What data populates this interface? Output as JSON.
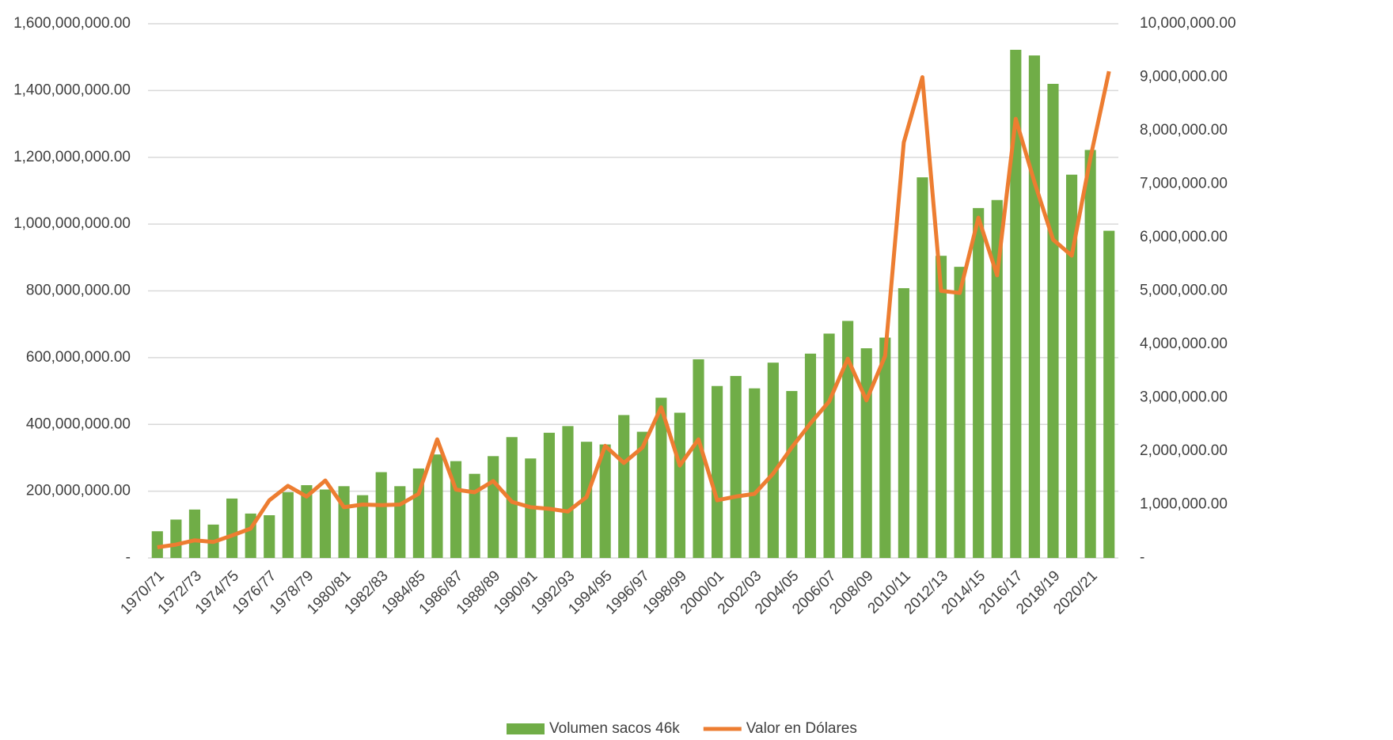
{
  "chart_data": {
    "type": "bar-line",
    "categories": [
      "1970/71",
      null,
      "1972/73",
      null,
      "1974/75",
      null,
      "1976/77",
      null,
      "1978/79",
      null,
      "1980/81",
      null,
      "1982/83",
      null,
      "1984/85",
      null,
      "1986/87",
      null,
      "1988/89",
      null,
      "1990/91",
      null,
      "1992/93",
      null,
      "1994/95",
      null,
      "1996/97",
      null,
      "1998/99",
      null,
      "2000/01",
      null,
      "2002/03",
      null,
      "2004/05",
      null,
      "2006/07",
      null,
      "2008/09",
      null,
      "2010/11",
      null,
      "2012/13",
      null,
      "2014/15",
      null,
      "2016/17",
      null,
      "2018/19",
      null,
      "2020/21",
      null
    ],
    "series": [
      {
        "name": "Volumen sacos 46k",
        "type": "bar",
        "color": "#70ad47",
        "axis": "y",
        "values": [
          80000000,
          115000000,
          145000000,
          100000000,
          178000000,
          133000000,
          128000000,
          197000000,
          218000000,
          205000000,
          215000000,
          188000000,
          257000000,
          215000000,
          268000000,
          310000000,
          290000000,
          252000000,
          305000000,
          362000000,
          298000000,
          375000000,
          395000000,
          348000000,
          340000000,
          428000000,
          378000000,
          480000000,
          435000000,
          595000000,
          515000000,
          545000000,
          508000000,
          585000000,
          500000000,
          612000000,
          672000000,
          710000000,
          628000000,
          660000000,
          808000000,
          1140000000,
          905000000,
          872000000,
          1048000000,
          1072000000,
          1522000000,
          1505000000,
          1420000000,
          1148000000,
          1222000000,
          980000000
        ]
      },
      {
        "name": "Valor en Dólares",
        "type": "line",
        "color": "#ed7d31",
        "axis": "y2",
        "values": [
          200000,
          250000,
          330000,
          300000,
          420000,
          550000,
          1080000,
          1350000,
          1150000,
          1450000,
          950000,
          1000000,
          990000,
          1000000,
          1200000,
          2220000,
          1280000,
          1230000,
          1440000,
          1050000,
          950000,
          920000,
          870000,
          1140000,
          2100000,
          1780000,
          2070000,
          2820000,
          1730000,
          2220000,
          1080000,
          1150000,
          1200000,
          1580000,
          2070000,
          2520000,
          2930000,
          3730000,
          2950000,
          3780000,
          7780000,
          9000000,
          5000000,
          4960000,
          6370000,
          5290000,
          8220000,
          7040000,
          5960000,
          5660000,
          7480000,
          9110000
        ]
      }
    ],
    "ylim": [
      0,
      1600000000
    ],
    "yticks": [
      {
        "value": 0,
        "label": "-"
      },
      {
        "value": 200000000,
        "label": "200,000,000.00"
      },
      {
        "value": 400000000,
        "label": "400,000,000.00"
      },
      {
        "value": 600000000,
        "label": "600,000,000.00"
      },
      {
        "value": 800000000,
        "label": "800,000,000.00"
      },
      {
        "value": 1000000000,
        "label": "1,000,000,000.00"
      },
      {
        "value": 1200000000,
        "label": "1,200,000,000.00"
      },
      {
        "value": 1400000000,
        "label": "1,400,000,000.00"
      },
      {
        "value": 1600000000,
        "label": "1,600,000,000.00"
      }
    ],
    "y2lim": [
      0,
      10000000
    ],
    "y2ticks": [
      {
        "value": 0,
        "label": "-"
      },
      {
        "value": 1000000,
        "label": "1,000,000.00"
      },
      {
        "value": 2000000,
        "label": "2,000,000.00"
      },
      {
        "value": 3000000,
        "label": "3,000,000.00"
      },
      {
        "value": 4000000,
        "label": "4,000,000.00"
      },
      {
        "value": 5000000,
        "label": "5,000,000.00"
      },
      {
        "value": 6000000,
        "label": "6,000,000.00"
      },
      {
        "value": 7000000,
        "label": "7,000,000.00"
      },
      {
        "value": 8000000,
        "label": "8,000,000.00"
      },
      {
        "value": 9000000,
        "label": "9,000,000.00"
      },
      {
        "value": 10000000,
        "label": "10,000,000.00"
      }
    ],
    "grid": true,
    "legend": "bottom"
  }
}
